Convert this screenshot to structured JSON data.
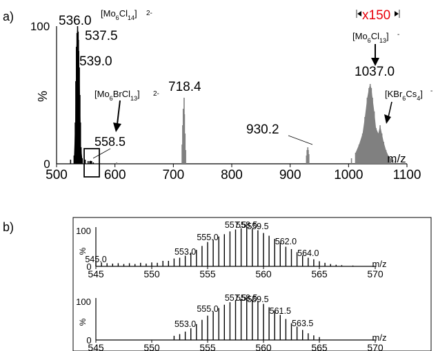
{
  "panels": {
    "a": {
      "label": "a)"
    },
    "b": {
      "label": "b)"
    }
  },
  "chart_data": [
    {
      "panel": "a",
      "type": "line",
      "xlabel": "m/z",
      "ylabel": "%",
      "xlim": [
        500,
        1100
      ],
      "ylim": [
        0,
        100
      ],
      "x_ticks": [
        "500",
        "600",
        "700",
        "800",
        "900",
        "1000",
        "1100"
      ],
      "y_ticks": [
        "0",
        "100"
      ],
      "grid": false,
      "peak_labels": [
        {
          "x": 536.0,
          "y": 100,
          "text": "536.0"
        },
        {
          "x": 537.5,
          "y": 90,
          "text": "537.5"
        },
        {
          "x": 539.0,
          "y": 70,
          "text": "539.0"
        },
        {
          "x": 558.5,
          "y": 2,
          "text": "558.5"
        },
        {
          "x": 718.4,
          "y": 48,
          "text": "718.4"
        },
        {
          "x": 930.2,
          "y": 12,
          "text": "930.2"
        },
        {
          "x": 1037.0,
          "y": 58,
          "text": "1037.0"
        }
      ],
      "annotations": {
        "main_species": {
          "text": "[Mo6Cl14]",
          "charge": "2-"
        },
        "inset_species": {
          "text": "[Mo6BrCl13]",
          "charge": "2-"
        },
        "high_mass_species": {
          "text": "[Mo6Cl13]",
          "charge": "-"
        },
        "cesium_species": {
          "text": "[KBr6Cs4]",
          "charge": "-"
        },
        "magnification": {
          "text": "x150",
          "color": "#e8000b"
        }
      },
      "series": [
        {
          "name": "",
          "color": "#000000",
          "peaks": [
            [
              524,
              3
            ],
            [
              530,
              6
            ],
            [
              532,
              30
            ],
            [
              533,
              60
            ],
            [
              534,
              85
            ],
            [
              535,
              95
            ],
            [
              536,
              100
            ],
            [
              537,
              96
            ],
            [
              537.5,
              90
            ],
            [
              538,
              82
            ],
            [
              539,
              70
            ],
            [
              540,
              50
            ],
            [
              541,
              30
            ],
            [
              542,
              12
            ],
            [
              544,
              4
            ],
            [
              549,
              3
            ],
            [
              554,
              2
            ],
            [
              557,
              2
            ],
            [
              558.5,
              2
            ],
            [
              560,
              2
            ],
            [
              563,
              1
            ],
            [
              1025,
              3
            ],
            [
              1035,
              6
            ],
            [
              1043,
              8
            ],
            [
              1055,
              5
            ],
            [
              1070,
              3
            ],
            [
              1080,
              2
            ]
          ]
        },
        {
          "name": "",
          "color": "#808080",
          "peaks": [
            [
              603,
              1
            ],
            [
              715,
              14
            ],
            [
              716,
              28
            ],
            [
              717,
              40
            ],
            [
              718.4,
              48
            ],
            [
              719,
              36
            ],
            [
              720,
              22
            ],
            [
              721,
              10
            ],
            [
              928,
              6
            ],
            [
              929,
              10
            ],
            [
              930.2,
              12
            ],
            [
              931,
              10
            ],
            [
              932,
              7
            ],
            [
              1005,
              4
            ],
            [
              1012,
              8
            ],
            [
              1018,
              14
            ],
            [
              1024,
              22
            ],
            [
              1028,
              34
            ],
            [
              1032,
              48
            ],
            [
              1035,
              55
            ],
            [
              1037,
              58
            ],
            [
              1039,
              55
            ],
            [
              1041,
              48
            ],
            [
              1044,
              38
            ],
            [
              1047,
              26
            ],
            [
              1051,
              22
            ],
            [
              1054,
              28
            ],
            [
              1057,
              22
            ],
            [
              1060,
              16
            ],
            [
              1064,
              10
            ],
            [
              1068,
              6
            ],
            [
              1072,
              4
            ],
            [
              1076,
              3
            ],
            [
              1080,
              2
            ]
          ]
        }
      ]
    },
    {
      "panel": "b",
      "type": "bar",
      "xlabel": "m/z",
      "ylabel": "%",
      "xlim": [
        545,
        570
      ],
      "ylim": [
        0,
        100
      ],
      "x_ticks": [
        "545",
        "550",
        "555",
        "560",
        "565",
        "570"
      ],
      "y_ticks": [
        "0",
        "100"
      ],
      "peak_labels": [
        {
          "x": 545.0,
          "text": "545.0"
        },
        {
          "x": 553.0,
          "text": "553.0"
        },
        {
          "x": 555.0,
          "text": "555.0"
        },
        {
          "x": 557.5,
          "text": "557.5"
        },
        {
          "x": 558.5,
          "text": "558.5"
        },
        {
          "x": 559.5,
          "text": "559.5"
        },
        {
          "x": 562.0,
          "text": "562.0"
        },
        {
          "x": 564.0,
          "text": "564.0"
        }
      ],
      "series": [
        {
          "name": "",
          "color": "#000000",
          "peaks": [
            [
              545,
              13
            ],
            [
              545.5,
              10
            ],
            [
              546,
              8
            ],
            [
              546.5,
              7
            ],
            [
              547,
              8
            ],
            [
              547.5,
              6
            ],
            [
              548,
              8
            ],
            [
              548.5,
              6
            ],
            [
              549,
              9
            ],
            [
              549.5,
              7
            ],
            [
              550,
              10
            ],
            [
              550.5,
              9
            ],
            [
              551,
              14
            ],
            [
              551.5,
              14
            ],
            [
              552,
              20
            ],
            [
              552.5,
              22
            ],
            [
              553,
              27
            ],
            [
              553.5,
              35
            ],
            [
              554,
              42
            ],
            [
              554.5,
              52
            ],
            [
              555,
              62
            ],
            [
              555.5,
              68
            ],
            [
              556,
              76
            ],
            [
              556.5,
              82
            ],
            [
              557,
              89
            ],
            [
              557.5,
              94
            ],
            [
              558,
              97
            ],
            [
              558.5,
              100
            ],
            [
              559,
              96
            ],
            [
              559.5,
              92
            ],
            [
              560,
              85
            ],
            [
              560.5,
              78
            ],
            [
              561,
              70
            ],
            [
              561.5,
              60
            ],
            [
              562,
              50
            ],
            [
              562.5,
              44
            ],
            [
              563,
              36
            ],
            [
              563.5,
              28
            ],
            [
              564,
              22
            ],
            [
              564.5,
              18
            ],
            [
              565,
              13
            ],
            [
              565.5,
              9
            ],
            [
              566,
              6
            ],
            [
              566.5,
              4
            ],
            [
              567,
              3
            ],
            [
              568,
              2
            ]
          ]
        }
      ]
    },
    {
      "panel": "b",
      "type": "bar",
      "xlabel": "m/z",
      "ylabel": "%",
      "xlim": [
        545,
        570
      ],
      "ylim": [
        0,
        100
      ],
      "x_ticks": [
        "545",
        "550",
        "555",
        "560",
        "565",
        "570"
      ],
      "y_ticks": [
        "0",
        "100"
      ],
      "peak_labels": [
        {
          "x": 553.0,
          "text": "553.0"
        },
        {
          "x": 555.0,
          "text": "555.0"
        },
        {
          "x": 557.5,
          "text": "557.5"
        },
        {
          "x": 558.5,
          "text": "558.5"
        },
        {
          "x": 559.5,
          "text": "559.5"
        },
        {
          "x": 561.5,
          "text": "561.5"
        },
        {
          "x": 563.5,
          "text": "563.5"
        }
      ],
      "series": [
        {
          "name": "",
          "color": "#000000",
          "peaks": [
            [
              552,
              10
            ],
            [
              552.5,
              14
            ],
            [
              553,
              20
            ],
            [
              553.5,
              28
            ],
            [
              554,
              38
            ],
            [
              554.5,
              48
            ],
            [
              555,
              58
            ],
            [
              555.5,
              68
            ],
            [
              556,
              76
            ],
            [
              556.5,
              84
            ],
            [
              557,
              90
            ],
            [
              557.5,
              95
            ],
            [
              558,
              98
            ],
            [
              558.5,
              100
            ],
            [
              559,
              97
            ],
            [
              559.5,
              92
            ],
            [
              560,
              86
            ],
            [
              560.5,
              78
            ],
            [
              561,
              70
            ],
            [
              561.5,
              60
            ],
            [
              562,
              50
            ],
            [
              562.5,
              40
            ],
            [
              563,
              32
            ],
            [
              563.5,
              24
            ],
            [
              564,
              16
            ],
            [
              564.5,
              11
            ],
            [
              565,
              7
            ]
          ]
        }
      ]
    }
  ]
}
